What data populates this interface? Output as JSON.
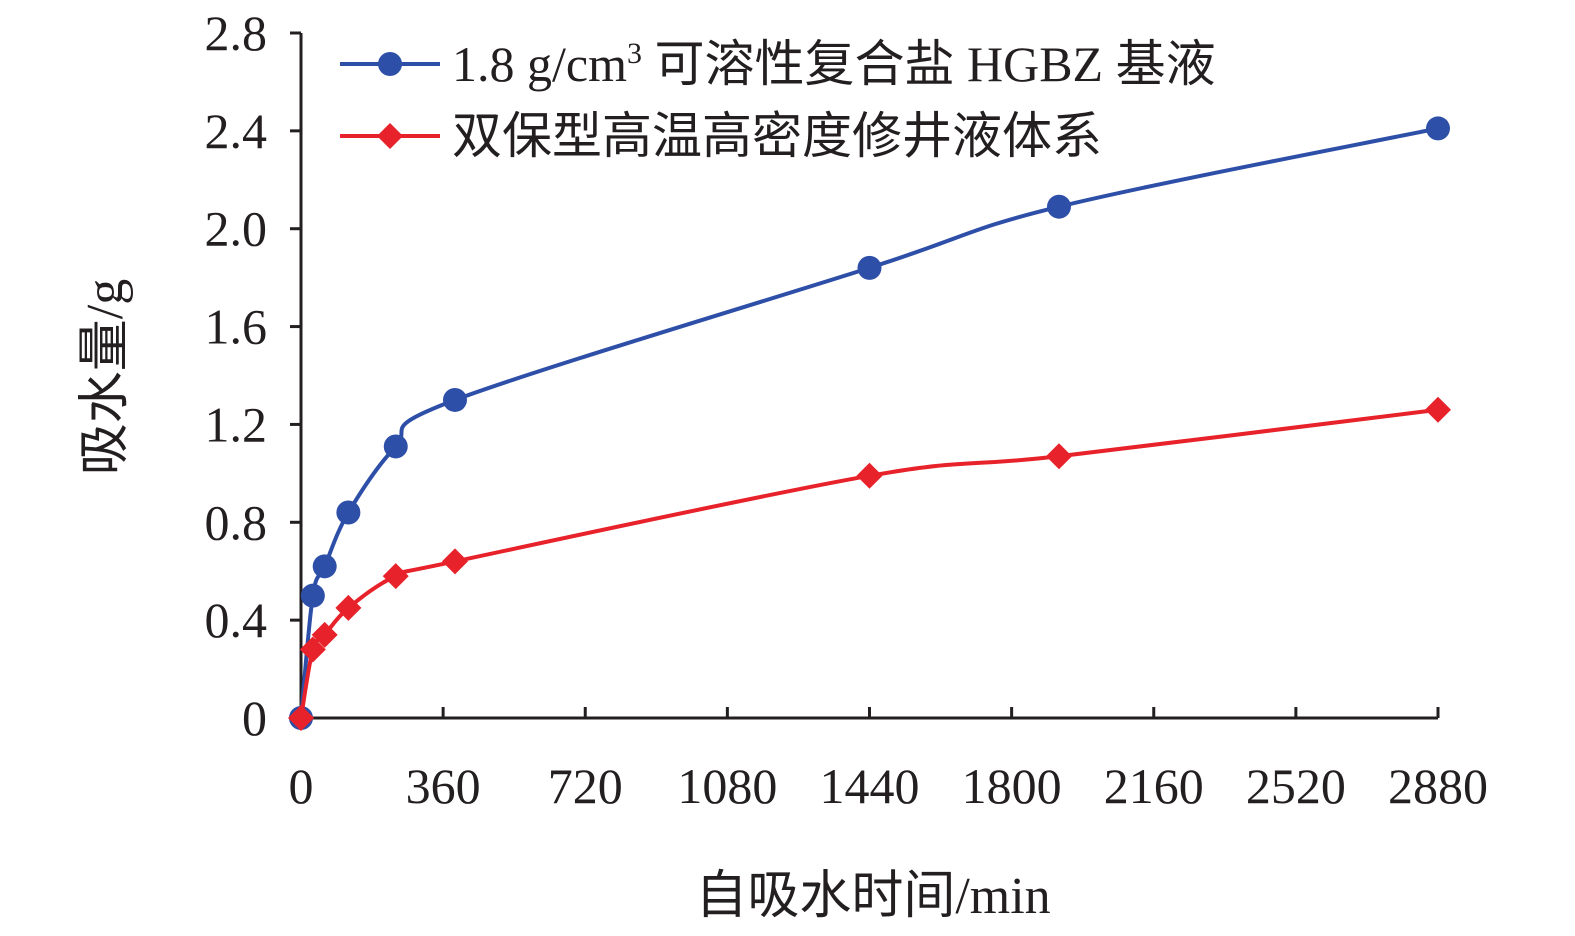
{
  "chart_data": {
    "type": "line",
    "title": "",
    "xlabel": "自吸水时间/min",
    "ylabel": "吸水量/g",
    "xlim": [
      0,
      2880
    ],
    "ylim": [
      0,
      2.8
    ],
    "xticks": [
      0,
      360,
      720,
      1080,
      1440,
      1800,
      2160,
      2520,
      2880
    ],
    "xtick_labels": [
      "0",
      "360",
      "720",
      "1080",
      "1440",
      "1800",
      "2160",
      "2520",
      "2880"
    ],
    "yticks": [
      0,
      0.4,
      0.8,
      1.2,
      1.6,
      2.0,
      2.4,
      2.8
    ],
    "ytick_labels": [
      "0",
      "0.4",
      "0.8",
      "1.2",
      "1.6",
      "2.0",
      "2.4",
      "2.8"
    ],
    "grid": false,
    "legend_position": "top-left",
    "series": [
      {
        "name": "1.8 g/cm³ 可溶性复合盐 HGBZ 基液",
        "name_parts": {
          "prefix": "1.8 g/cm",
          "superscript": "3",
          "suffix": " 可溶性复合盐 HGBZ 基液"
        },
        "color": "#2e4fa8",
        "marker": "circle",
        "x": [
          0,
          30,
          60,
          120,
          240,
          390,
          1440,
          1920,
          2880
        ],
        "y": [
          0,
          0.5,
          0.62,
          0.84,
          1.11,
          1.3,
          1.84,
          2.09,
          2.41
        ]
      },
      {
        "name": "双保型高温高密度修井液体系",
        "color": "#e8222a",
        "marker": "diamond",
        "x": [
          0,
          30,
          60,
          120,
          240,
          390,
          1440,
          1920,
          2880
        ],
        "y": [
          0,
          0.28,
          0.34,
          0.45,
          0.58,
          0.64,
          0.99,
          1.07,
          1.26
        ]
      }
    ]
  }
}
